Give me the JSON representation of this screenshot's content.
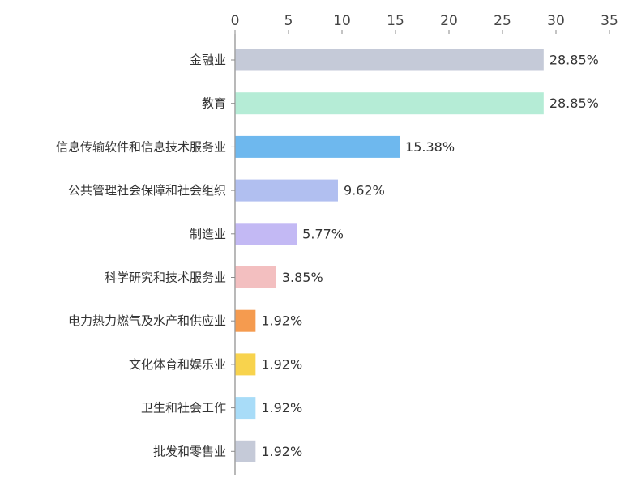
{
  "chart_data": {
    "type": "bar",
    "orientation": "horizontal",
    "x_axis_position": "top",
    "grid": false,
    "legend": "none",
    "xlim": [
      0,
      35
    ],
    "xticks": [
      0,
      5,
      10,
      15,
      20,
      25,
      30,
      35
    ],
    "categories": [
      "金融业",
      "教育",
      "信息传输软件和信息技术服务业",
      "公共管理社会保障和社会组织",
      "制造业",
      "科学研究和技术服务业",
      "电力热力燃气及水产和供应业",
      "文化体育和娱乐业",
      "卫生和社会工作",
      "批发和零售业"
    ],
    "values": [
      28.85,
      28.85,
      15.38,
      9.62,
      5.77,
      3.85,
      1.92,
      1.92,
      1.92,
      1.92
    ],
    "value_labels": [
      "28.85%",
      "28.85%",
      "15.38%",
      "9.62%",
      "5.77%",
      "3.85%",
      "1.92%",
      "1.92%",
      "1.92%",
      "1.92%"
    ],
    "colors": [
      "#c5cad8",
      "#b5ecd6",
      "#6eb8ee",
      "#b1bff0",
      "#c3b9f4",
      "#f3bfc0",
      "#f59b4f",
      "#f8d34d",
      "#a8dcf8",
      "#c5cad8"
    ]
  }
}
